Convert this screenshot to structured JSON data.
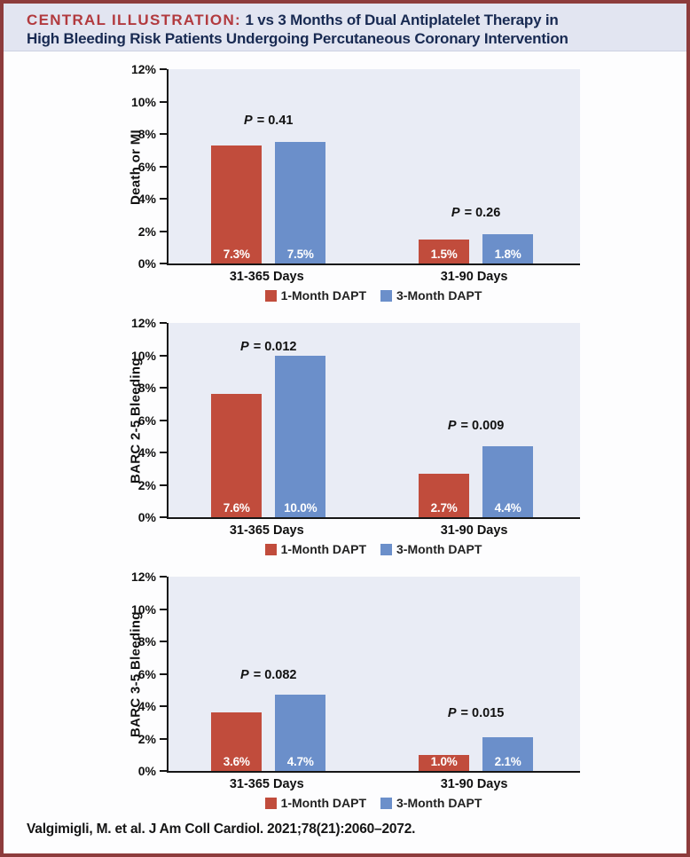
{
  "header": {
    "prefix": "CENTRAL ILLUSTRATION:",
    "title_line1": "1 vs 3 Months of Dual Antiplatelet Therapy in",
    "title_line2": "High Bleeding Risk Patients Undergoing Percutaneous Coronary Intervention"
  },
  "footer": {
    "citation": "Valgimigli, M. et al. J Am Coll Cardiol. 2021;78(21):2060–2072."
  },
  "colors": {
    "border": "#8d3c3c",
    "header_bg": "#e2e5f1",
    "header_prefix": "#b23a3e",
    "header_title": "#182a52",
    "plot_bg": "#e9ecf5",
    "axis": "#161616",
    "series_1_month_dapt": "#c14c3c",
    "series_3_month_dapt": "#6b8fca"
  },
  "chart_data": [
    {
      "type": "bar",
      "y_title": "Death or MI",
      "ylim": [
        0,
        12
      ],
      "ytick_step": 2,
      "ytick_suffix": "%",
      "yticks": [
        "0%",
        "2%",
        "4%",
        "6%",
        "8%",
        "10%",
        "12%"
      ],
      "grid": false,
      "legend_position": "bottom-center",
      "categories": [
        "31-365 Days",
        "31-90 Days"
      ],
      "series": [
        {
          "name": "1-Month DAPT",
          "color": "#c14c3c",
          "values": [
            7.3,
            1.5
          ]
        },
        {
          "name": "3-Month DAPT",
          "color": "#6b8fca",
          "values": [
            7.5,
            1.8
          ]
        }
      ],
      "bar_labels": [
        [
          "7.3%",
          "7.5%"
        ],
        [
          "1.5%",
          "1.8%"
        ]
      ],
      "p_values": [
        "P = 0.41",
        "P = 0.26"
      ],
      "p_label_y": [
        8.4,
        2.7
      ]
    },
    {
      "type": "bar",
      "y_title": "BARC 2-5 Bleeding",
      "ylim": [
        0,
        12
      ],
      "ytick_step": 2,
      "ytick_suffix": "%",
      "yticks": [
        "0%",
        "2%",
        "4%",
        "6%",
        "8%",
        "10%",
        "12%"
      ],
      "grid": false,
      "legend_position": "bottom-center",
      "categories": [
        "31-365 Days",
        "31-90 Days"
      ],
      "series": [
        {
          "name": "1-Month DAPT",
          "color": "#c14c3c",
          "values": [
            7.6,
            2.7
          ]
        },
        {
          "name": "3-Month DAPT",
          "color": "#6b8fca",
          "values": [
            10.0,
            4.4
          ]
        }
      ],
      "bar_labels": [
        [
          "7.6%",
          "10.0%"
        ],
        [
          "2.7%",
          "4.4%"
        ]
      ],
      "p_values": [
        "P = 0.012",
        "P = 0.009"
      ],
      "p_label_y": [
        10.1,
        5.2
      ]
    },
    {
      "type": "bar",
      "y_title": "BARC 3-5 Bleeding",
      "ylim": [
        0,
        12
      ],
      "ytick_step": 2,
      "ytick_suffix": "%",
      "yticks": [
        "0%",
        "2%",
        "4%",
        "6%",
        "8%",
        "10%",
        "12%"
      ],
      "grid": false,
      "legend_position": "bottom-center",
      "categories": [
        "31-365 Days",
        "31-90 Days"
      ],
      "series": [
        {
          "name": "1-Month DAPT",
          "color": "#c14c3c",
          "values": [
            3.6,
            1.0
          ]
        },
        {
          "name": "3-Month DAPT",
          "color": "#6b8fca",
          "values": [
            4.7,
            2.1
          ]
        }
      ],
      "bar_labels": [
        [
          "3.6%",
          "4.7%"
        ],
        [
          "1.0%",
          "2.1%"
        ]
      ],
      "p_values": [
        "P = 0.082",
        "P = 0.015"
      ],
      "p_label_y": [
        5.5,
        3.1
      ]
    }
  ]
}
